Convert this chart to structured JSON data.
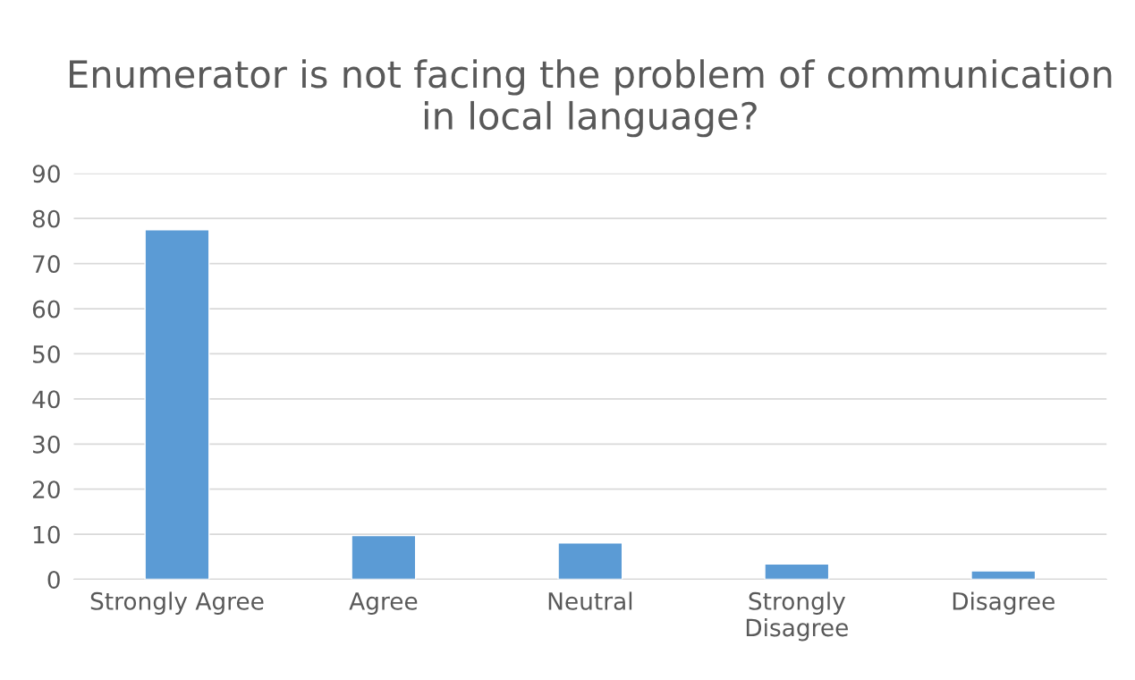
{
  "chart_data": {
    "type": "bar",
    "title": "Enumerator is not facing the problem of communication in local language?",
    "categories": [
      "Strongly Agree",
      "Agree",
      "Neutral",
      "Strongly\nDisagree",
      "Disagree"
    ],
    "values": [
      77.5,
      9.7,
      8.1,
      3.4,
      1.9
    ],
    "color": "#5b9bd5",
    "ylim": [
      0,
      90
    ],
    "yticks": [
      0,
      10,
      20,
      30,
      40,
      50,
      60,
      70,
      80,
      90
    ],
    "grid": "y"
  }
}
